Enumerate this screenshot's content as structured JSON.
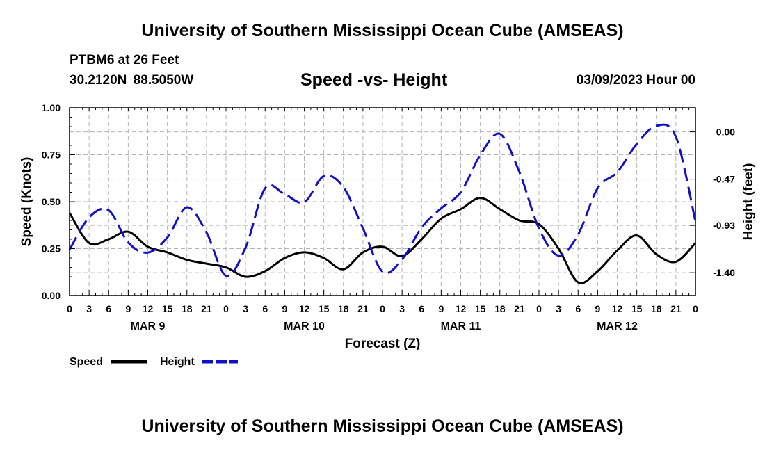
{
  "header": {
    "title": "University of Southern Mississippi Ocean Cube (AMSEAS)",
    "station": "PTBM6 at 26 Feet",
    "coords": "30.2120N  88.5050W",
    "subtitle": "Speed -vs- Height",
    "datetime": "03/09/2023 Hour 00"
  },
  "footer": {
    "title": "University of Southern Mississippi Ocean Cube (AMSEAS)"
  },
  "colors": {
    "speed": "#000000",
    "height": "#1010c8",
    "grid": "#b4b4b4"
  },
  "chart_data": {
    "type": "line",
    "title": "Speed -vs- Height",
    "xlabel": "Forecast (Z)",
    "ylabel": "Speed (Knots)",
    "y2label": "Height (feet)",
    "xlim": [
      0,
      96
    ],
    "ylim": [
      0,
      1
    ],
    "y2lim": [
      0.239,
      -1.627
    ],
    "x_ticks": [
      0,
      3,
      6,
      9,
      12,
      15,
      18,
      21,
      24,
      27,
      30,
      33,
      36,
      39,
      42,
      45,
      48,
      51,
      54,
      57,
      60,
      63,
      66,
      69,
      72,
      75,
      78,
      81,
      84,
      87,
      90,
      93,
      96
    ],
    "x_tick_labels": [
      "0",
      "3",
      "6",
      "9",
      "12",
      "15",
      "18",
      "21",
      "0",
      "3",
      "6",
      "9",
      "12",
      "15",
      "18",
      "21",
      "0",
      "3",
      "6",
      "9",
      "12",
      "15",
      "18",
      "21",
      "0",
      "3",
      "6",
      "9",
      "12",
      "15",
      "18",
      "21",
      "0"
    ],
    "date_labels": [
      {
        "x": 12,
        "label": "MAR 9"
      },
      {
        "x": 36,
        "label": "MAR 10"
      },
      {
        "x": 60,
        "label": "MAR 11"
      },
      {
        "x": 84,
        "label": "MAR 12"
      }
    ],
    "y_ticks": [
      0,
      0.25,
      0.5,
      0.75,
      1.0
    ],
    "y_tick_labels": [
      "0.00",
      "0.25",
      "0.50",
      "0.75",
      "1.00"
    ],
    "y2_ticks": [
      0,
      -0.47,
      -0.93,
      -1.4
    ],
    "y2_tick_labels": [
      "0.00",
      "-0.47",
      "-0.93",
      "-1.40"
    ],
    "legend": [
      {
        "name": "Speed",
        "style": "solid"
      },
      {
        "name": "Height",
        "style": "dashed"
      }
    ],
    "series": [
      {
        "name": "Speed",
        "axis": "left",
        "style": "solid",
        "x": [
          0,
          3,
          6,
          9,
          12,
          15,
          18,
          21,
          24,
          27,
          30,
          33,
          36,
          39,
          42,
          45,
          48,
          51,
          54,
          57,
          60,
          63,
          66,
          69,
          72,
          75,
          78,
          81,
          84,
          87,
          90,
          93,
          96
        ],
        "values": [
          0.44,
          0.28,
          0.3,
          0.34,
          0.26,
          0.23,
          0.19,
          0.17,
          0.15,
          0.1,
          0.13,
          0.2,
          0.23,
          0.2,
          0.14,
          0.23,
          0.26,
          0.21,
          0.3,
          0.41,
          0.46,
          0.52,
          0.46,
          0.4,
          0.38,
          0.25,
          0.07,
          0.13,
          0.24,
          0.32,
          0.22,
          0.18,
          0.28
        ]
      },
      {
        "name": "Height",
        "axis": "right",
        "style": "dashed",
        "x": [
          0,
          3,
          6,
          9,
          12,
          15,
          18,
          21,
          24,
          27,
          30,
          33,
          36,
          39,
          42,
          45,
          48,
          51,
          54,
          57,
          60,
          63,
          66,
          69,
          72,
          75,
          78,
          81,
          84,
          87,
          90,
          93,
          96
        ],
        "values": [
          -1.17,
          -0.85,
          -0.78,
          -1.1,
          -1.2,
          -1.05,
          -0.75,
          -1.0,
          -1.43,
          -1.15,
          -0.56,
          -0.62,
          -0.7,
          -0.44,
          -0.55,
          -0.96,
          -1.39,
          -1.27,
          -0.95,
          -0.76,
          -0.6,
          -0.23,
          -0.02,
          -0.4,
          -0.96,
          -1.23,
          -1.02,
          -0.56,
          -0.4,
          -0.12,
          0.06,
          -0.05,
          -0.89
        ]
      }
    ]
  }
}
